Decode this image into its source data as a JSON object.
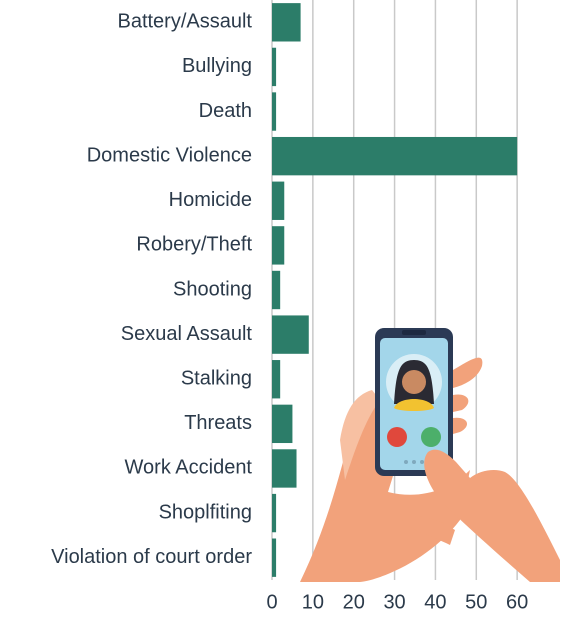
{
  "chart_data": {
    "type": "hbar",
    "categories": [
      "Battery/Assault",
      "Bullying",
      "Death",
      "Domestic Violence",
      "Homicide",
      "Robery/Theft",
      "Shooting",
      "Sexual Assault",
      "Stalking",
      "Threats",
      "Work Accident",
      "Shoplfiting",
      "Violation of court order"
    ],
    "values": [
      7,
      1,
      1,
      60,
      3,
      3,
      2,
      9,
      2,
      5,
      6,
      1,
      1
    ],
    "color": "#2c7d69",
    "xlim": [
      0,
      70
    ],
    "xticks": [
      0,
      10,
      20,
      30,
      40,
      50,
      60
    ],
    "grid": true
  }
}
